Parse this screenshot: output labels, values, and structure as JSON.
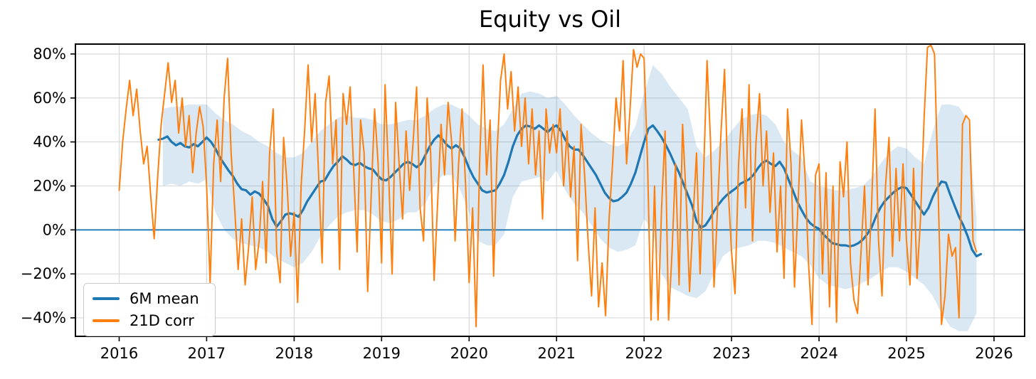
{
  "title": "Equity vs Oil",
  "colors": {
    "mean_line": "#1f77b4",
    "corr_line": "#ff7f0e",
    "band_fill": "#1f77b4",
    "band_alpha": 0.17,
    "zero_line": "#1f77b4",
    "grid": "#d6d6d6",
    "spine": "#000000",
    "background": "#ffffff",
    "text": "#000000"
  },
  "legend": [
    {
      "label": "6M mean",
      "color": "#1f77b4"
    },
    {
      "label": "21D corr",
      "color": "#ff7f0e"
    }
  ],
  "chart_data": {
    "type": "line",
    "title": "Equity vs Oil",
    "xlabel": "",
    "ylabel": "",
    "grid": true,
    "legend_position": "lower left",
    "zero_line": 0,
    "x_axis": {
      "lim": [
        2015.5,
        2026.35
      ],
      "ticks": [
        2016,
        2017,
        2018,
        2019,
        2020,
        2021,
        2022,
        2023,
        2024,
        2025,
        2026
      ],
      "tick_labels": [
        "2016",
        "2017",
        "2018",
        "2019",
        "2020",
        "2021",
        "2022",
        "2023",
        "2024",
        "2025",
        "2026"
      ]
    },
    "y_axis": {
      "lim": [
        -48.4,
        84.5
      ],
      "ticks": [
        -40,
        -20,
        0,
        20,
        40,
        60,
        80
      ],
      "tick_labels": [
        "−40%",
        "−20%",
        "0%",
        "20%",
        "40%",
        "60%",
        "80%"
      ]
    },
    "series": [
      {
        "name": "6M mean",
        "color": "#1f77b4",
        "width": 3.2,
        "x0": 2016.45,
        "dx": 0.05,
        "values": [
          41,
          41.5,
          42.5,
          40,
          38.5,
          39.5,
          38,
          37.5,
          39,
          38,
          40,
          42,
          40,
          37,
          33,
          30,
          27,
          24.5,
          21,
          18.5,
          18,
          16,
          17.5,
          16.5,
          14,
          11,
          5,
          1.5,
          4,
          7,
          7.5,
          7,
          6,
          9,
          13,
          16,
          19,
          22,
          22.5,
          26,
          29,
          31,
          33.5,
          32,
          30,
          29.5,
          30.5,
          29,
          28,
          27.5,
          25,
          23,
          22.5,
          24,
          26,
          28,
          30,
          31,
          30,
          28.5,
          30,
          34,
          38,
          41,
          43,
          41,
          38.5,
          37,
          38.5,
          37,
          33,
          28,
          24,
          21,
          18,
          17,
          17.5,
          18,
          21,
          25,
          31,
          38,
          43,
          46,
          47.5,
          47,
          46,
          47.5,
          46,
          44.5,
          46.5,
          47.5,
          45,
          41,
          38,
          36.5,
          36.5,
          34,
          31,
          28,
          25,
          21,
          17,
          14.5,
          13,
          13.5,
          15,
          17,
          21,
          26,
          33,
          40,
          46,
          47.5,
          45,
          42,
          38.5,
          34.5,
          30,
          26,
          21,
          16,
          11,
          4,
          1,
          2,
          5,
          8.5,
          11.5,
          14,
          16,
          17.5,
          19,
          21,
          22,
          23,
          25,
          28,
          30.5,
          31.5,
          30,
          29,
          31,
          28,
          23,
          18,
          13,
          9,
          5.5,
          3,
          1.5,
          0.5,
          -2,
          -4,
          -6,
          -6.5,
          -7,
          -7,
          -7.5,
          -7,
          -6,
          -4.5,
          -2,
          1,
          6,
          10,
          13,
          15,
          17,
          18.5,
          19.5,
          19,
          16,
          13,
          10,
          7,
          10,
          15,
          19,
          22,
          21.5,
          16,
          11,
          6,
          2,
          -3,
          -9,
          -12,
          -11
        ]
      },
      {
        "name": "21D corr",
        "color": "#ff7f0e",
        "width": 2,
        "x0": 2016.0,
        "dx": 0.04,
        "values": [
          18,
          40,
          55,
          68,
          52,
          64,
          45,
          30,
          38,
          16,
          -4,
          24,
          48,
          62,
          76,
          58,
          68,
          44,
          60,
          38,
          52,
          26,
          44,
          56,
          47,
          20,
          -24,
          30,
          50,
          22,
          60,
          78,
          35,
          10,
          -18,
          5,
          -25,
          -8,
          15,
          -18,
          -5,
          22,
          -15,
          35,
          55,
          -10,
          -24,
          42,
          20,
          -12,
          8,
          -33,
          20,
          45,
          75,
          40,
          62,
          25,
          -15,
          58,
          70,
          30,
          50,
          -18,
          62,
          48,
          65,
          28,
          -10,
          50,
          35,
          -28,
          15,
          55,
          30,
          -15,
          66,
          25,
          -20,
          58,
          30,
          5,
          45,
          18,
          40,
          65,
          10,
          -5,
          60,
          35,
          -23,
          12,
          48,
          25,
          58,
          40,
          -5,
          30,
          55,
          20,
          -24,
          10,
          -44,
          30,
          75,
          25,
          50,
          -21,
          35,
          68,
          80,
          55,
          72,
          45,
          65,
          38,
          60,
          30,
          55,
          25,
          45,
          5,
          55,
          35,
          48,
          35,
          55,
          20,
          45,
          15,
          38,
          -14,
          48,
          25,
          -5,
          -30,
          10,
          -35,
          -15,
          -39,
          5,
          30,
          60,
          45,
          77,
          30,
          55,
          82,
          74,
          80,
          78,
          30,
          -41,
          20,
          -41,
          10,
          45,
          -41,
          -10,
          30,
          -25,
          48,
          15,
          -28,
          5,
          35,
          -20,
          25,
          77,
          40,
          -26,
          10,
          45,
          73,
          20,
          -10,
          -29,
          30,
          55,
          10,
          66,
          -5,
          40,
          62,
          20,
          45,
          8,
          35,
          -10,
          20,
          -22,
          55,
          30,
          -26,
          12,
          50,
          25,
          -15,
          -43,
          25,
          30,
          -20,
          26,
          -35,
          20,
          -42,
          31,
          15,
          40,
          -15,
          -32,
          -38,
          -10,
          20,
          -25,
          10,
          55,
          -5,
          -30,
          20,
          42,
          -12,
          28,
          -5,
          30,
          -5,
          -25,
          28,
          -22,
          5,
          50,
          83,
          84,
          80,
          20,
          -43,
          -30,
          -2,
          -12,
          -8,
          -40,
          48,
          52,
          50,
          -5,
          -10
        ]
      }
    ],
    "band": {
      "name": "6M range band",
      "color": "#1f77b4",
      "alpha": 0.17,
      "x0": 2016.5,
      "dx": 0.1,
      "upper": [
        55,
        56,
        56,
        57,
        57,
        57,
        53,
        50,
        48,
        45,
        43,
        40,
        38,
        35,
        33,
        33,
        35,
        40,
        45,
        48,
        51,
        52,
        51,
        51,
        50,
        48,
        48,
        49,
        50,
        50,
        52,
        55,
        57,
        57,
        55,
        52,
        48,
        46,
        45,
        48,
        55,
        62,
        63,
        62,
        60,
        61,
        57,
        52,
        48,
        44,
        41,
        39,
        38,
        40,
        47,
        62,
        75,
        71,
        65,
        60,
        55,
        38,
        33,
        36,
        40,
        45,
        50,
        52,
        53,
        52,
        48,
        40,
        36,
        33,
        22,
        20,
        19,
        18,
        18,
        19,
        20,
        24,
        30,
        35,
        38,
        37,
        33,
        30,
        45,
        57,
        57,
        56,
        50,
        5
      ],
      "lower": [
        20,
        21,
        20,
        22,
        21,
        23,
        8,
        0,
        -4,
        -6,
        -7,
        -8,
        -10,
        -13,
        -15,
        -17,
        -15,
        -10,
        -3,
        2,
        6,
        8,
        9,
        9,
        7,
        4,
        3,
        5,
        8,
        8,
        12,
        20,
        25,
        25,
        18,
        8,
        -5,
        -7,
        -7,
        -2,
        15,
        22,
        23,
        24,
        22,
        27,
        18,
        12,
        8,
        2,
        -4,
        -8,
        -10,
        -9,
        -7,
        5,
        0,
        -20,
        -26,
        -28,
        -30,
        -31,
        -28,
        -20,
        -12,
        -9,
        -8,
        -7,
        -5,
        -5,
        -6,
        -8,
        -10,
        -12,
        -16,
        -22,
        -25,
        -26,
        -27,
        -26,
        -24,
        -22,
        -19,
        -17,
        -17,
        -19,
        -22,
        -25,
        -30,
        -38,
        -44,
        -46,
        -46,
        -38
      ]
    }
  }
}
